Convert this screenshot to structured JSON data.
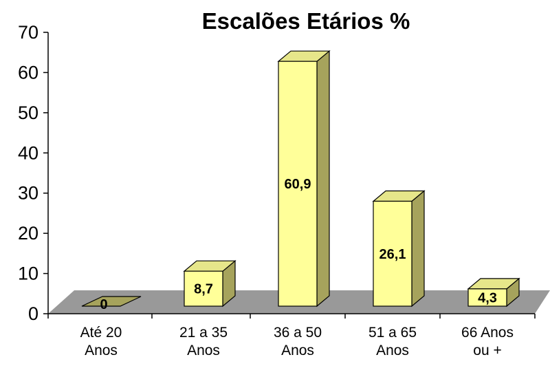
{
  "chart_data": {
    "type": "bar",
    "title": "Escalões Etários %",
    "xlabel": "",
    "ylabel": "",
    "ylim": [
      0,
      70
    ],
    "yticks": [
      "0",
      "10",
      "20",
      "30",
      "40",
      "50",
      "60",
      "70"
    ],
    "categories": [
      [
        "Até 20",
        "Anos"
      ],
      [
        "21 a 35",
        "Anos"
      ],
      [
        "36 a 50",
        "Anos"
      ],
      [
        "51 a 65",
        "Anos"
      ],
      [
        "66 Anos",
        "ou +"
      ]
    ],
    "values": [
      0,
      8.7,
      60.9,
      26.1,
      4.3
    ],
    "data_labels": [
      "0",
      "8,7",
      "60,9",
      "26,1",
      "4,3"
    ],
    "legend": "none",
    "grid": false,
    "style": "3d",
    "colors": {
      "bar_front": "#ffff99",
      "bar_top": "#e6e68a",
      "bar_side": "#a6a35c",
      "floor": "#999999",
      "axis": "#000000"
    }
  }
}
